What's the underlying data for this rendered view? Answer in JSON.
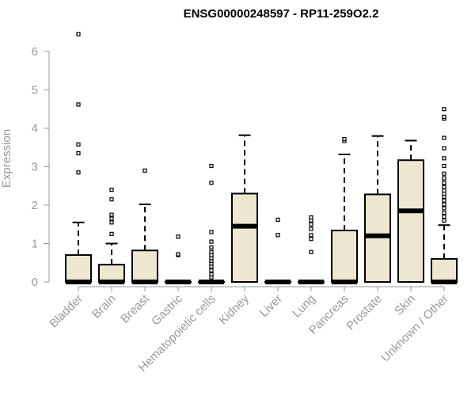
{
  "chart_data": {
    "type": "boxplot",
    "title": "ENSG00000248597 - RP11-259O2.2",
    "ylabel": "Expression",
    "xlabel": "",
    "ylim": [
      0,
      6.6
    ],
    "yticks": [
      0,
      1,
      2,
      3,
      4,
      5,
      6
    ],
    "grid": false,
    "legend": "none",
    "colors": {
      "box_fill": "#ede7cf",
      "stroke": "#000000",
      "axis": "#999999"
    },
    "categories": [
      "Bladder",
      "Brain",
      "Breast",
      "Gastric",
      "Hematopoietic cells",
      "Kidney",
      "Liver",
      "Lung",
      "Pancreas",
      "Prostate",
      "Skin",
      "Unknown / Other"
    ],
    "boxes": [
      {
        "category": "Bladder",
        "q1": 0,
        "median": 0,
        "q3": 0.7,
        "whisker_low": 0,
        "whisker_high": 1.55,
        "outliers": [
          2.85,
          3.35,
          3.58,
          4.62,
          6.45
        ]
      },
      {
        "category": "Brain",
        "q1": 0,
        "median": 0,
        "q3": 0.45,
        "whisker_low": 0,
        "whisker_high": 1.0,
        "outliers": [
          1.25,
          1.55,
          1.65,
          1.75,
          2.15,
          2.4
        ]
      },
      {
        "category": "Breast",
        "q1": 0,
        "median": 0,
        "q3": 0.82,
        "whisker_low": 0,
        "whisker_high": 2.02,
        "outliers": [
          2.9
        ]
      },
      {
        "category": "Gastric",
        "q1": 0,
        "median": 0,
        "q3": 0,
        "whisker_low": 0,
        "whisker_high": 0,
        "outliers": [
          0.7,
          0.72,
          1.18
        ]
      },
      {
        "category": "Hematopoietic cells",
        "q1": 0,
        "median": 0,
        "q3": 0,
        "whisker_low": 0,
        "whisker_high": 0,
        "outliers": [
          0.12,
          0.2,
          0.3,
          0.4,
          0.48,
          0.55,
          0.62,
          0.7,
          0.78,
          0.9,
          1.05,
          1.3,
          2.58,
          3.02
        ]
      },
      {
        "category": "Kidney",
        "q1": 0,
        "median": 1.45,
        "q3": 2.3,
        "whisker_low": 0,
        "whisker_high": 3.82,
        "outliers": []
      },
      {
        "category": "Liver",
        "q1": 0,
        "median": 0,
        "q3": 0,
        "whisker_low": 0,
        "whisker_high": 0,
        "outliers": [
          1.22,
          1.62
        ]
      },
      {
        "category": "Lung",
        "q1": 0,
        "median": 0,
        "q3": 0,
        "whisker_low": 0,
        "whisker_high": 0,
        "outliers": [
          0.78,
          1.12,
          1.22,
          1.38,
          1.5,
          1.6,
          1.68
        ]
      },
      {
        "category": "Pancreas",
        "q1": 0,
        "median": 0,
        "q3": 1.34,
        "whisker_low": 0,
        "whisker_high": 3.32,
        "outliers": [
          3.67,
          3.72
        ]
      },
      {
        "category": "Prostate",
        "q1": 0,
        "median": 1.2,
        "q3": 2.28,
        "whisker_low": 0,
        "whisker_high": 3.8,
        "outliers": []
      },
      {
        "category": "Skin",
        "q1": 0,
        "median": 1.85,
        "q3": 3.17,
        "whisker_low": 0,
        "whisker_high": 3.68,
        "outliers": []
      },
      {
        "category": "Unknown / Other",
        "q1": 0,
        "median": 0,
        "q3": 0.6,
        "whisker_low": 0,
        "whisker_high": 1.48,
        "outliers": [
          1.6,
          1.7,
          1.8,
          1.92,
          2.02,
          2.12,
          2.22,
          2.3,
          2.38,
          2.47,
          2.58,
          2.7,
          2.82,
          3.02,
          3.22,
          3.48,
          3.75,
          4.25,
          4.3,
          4.5
        ]
      }
    ]
  }
}
